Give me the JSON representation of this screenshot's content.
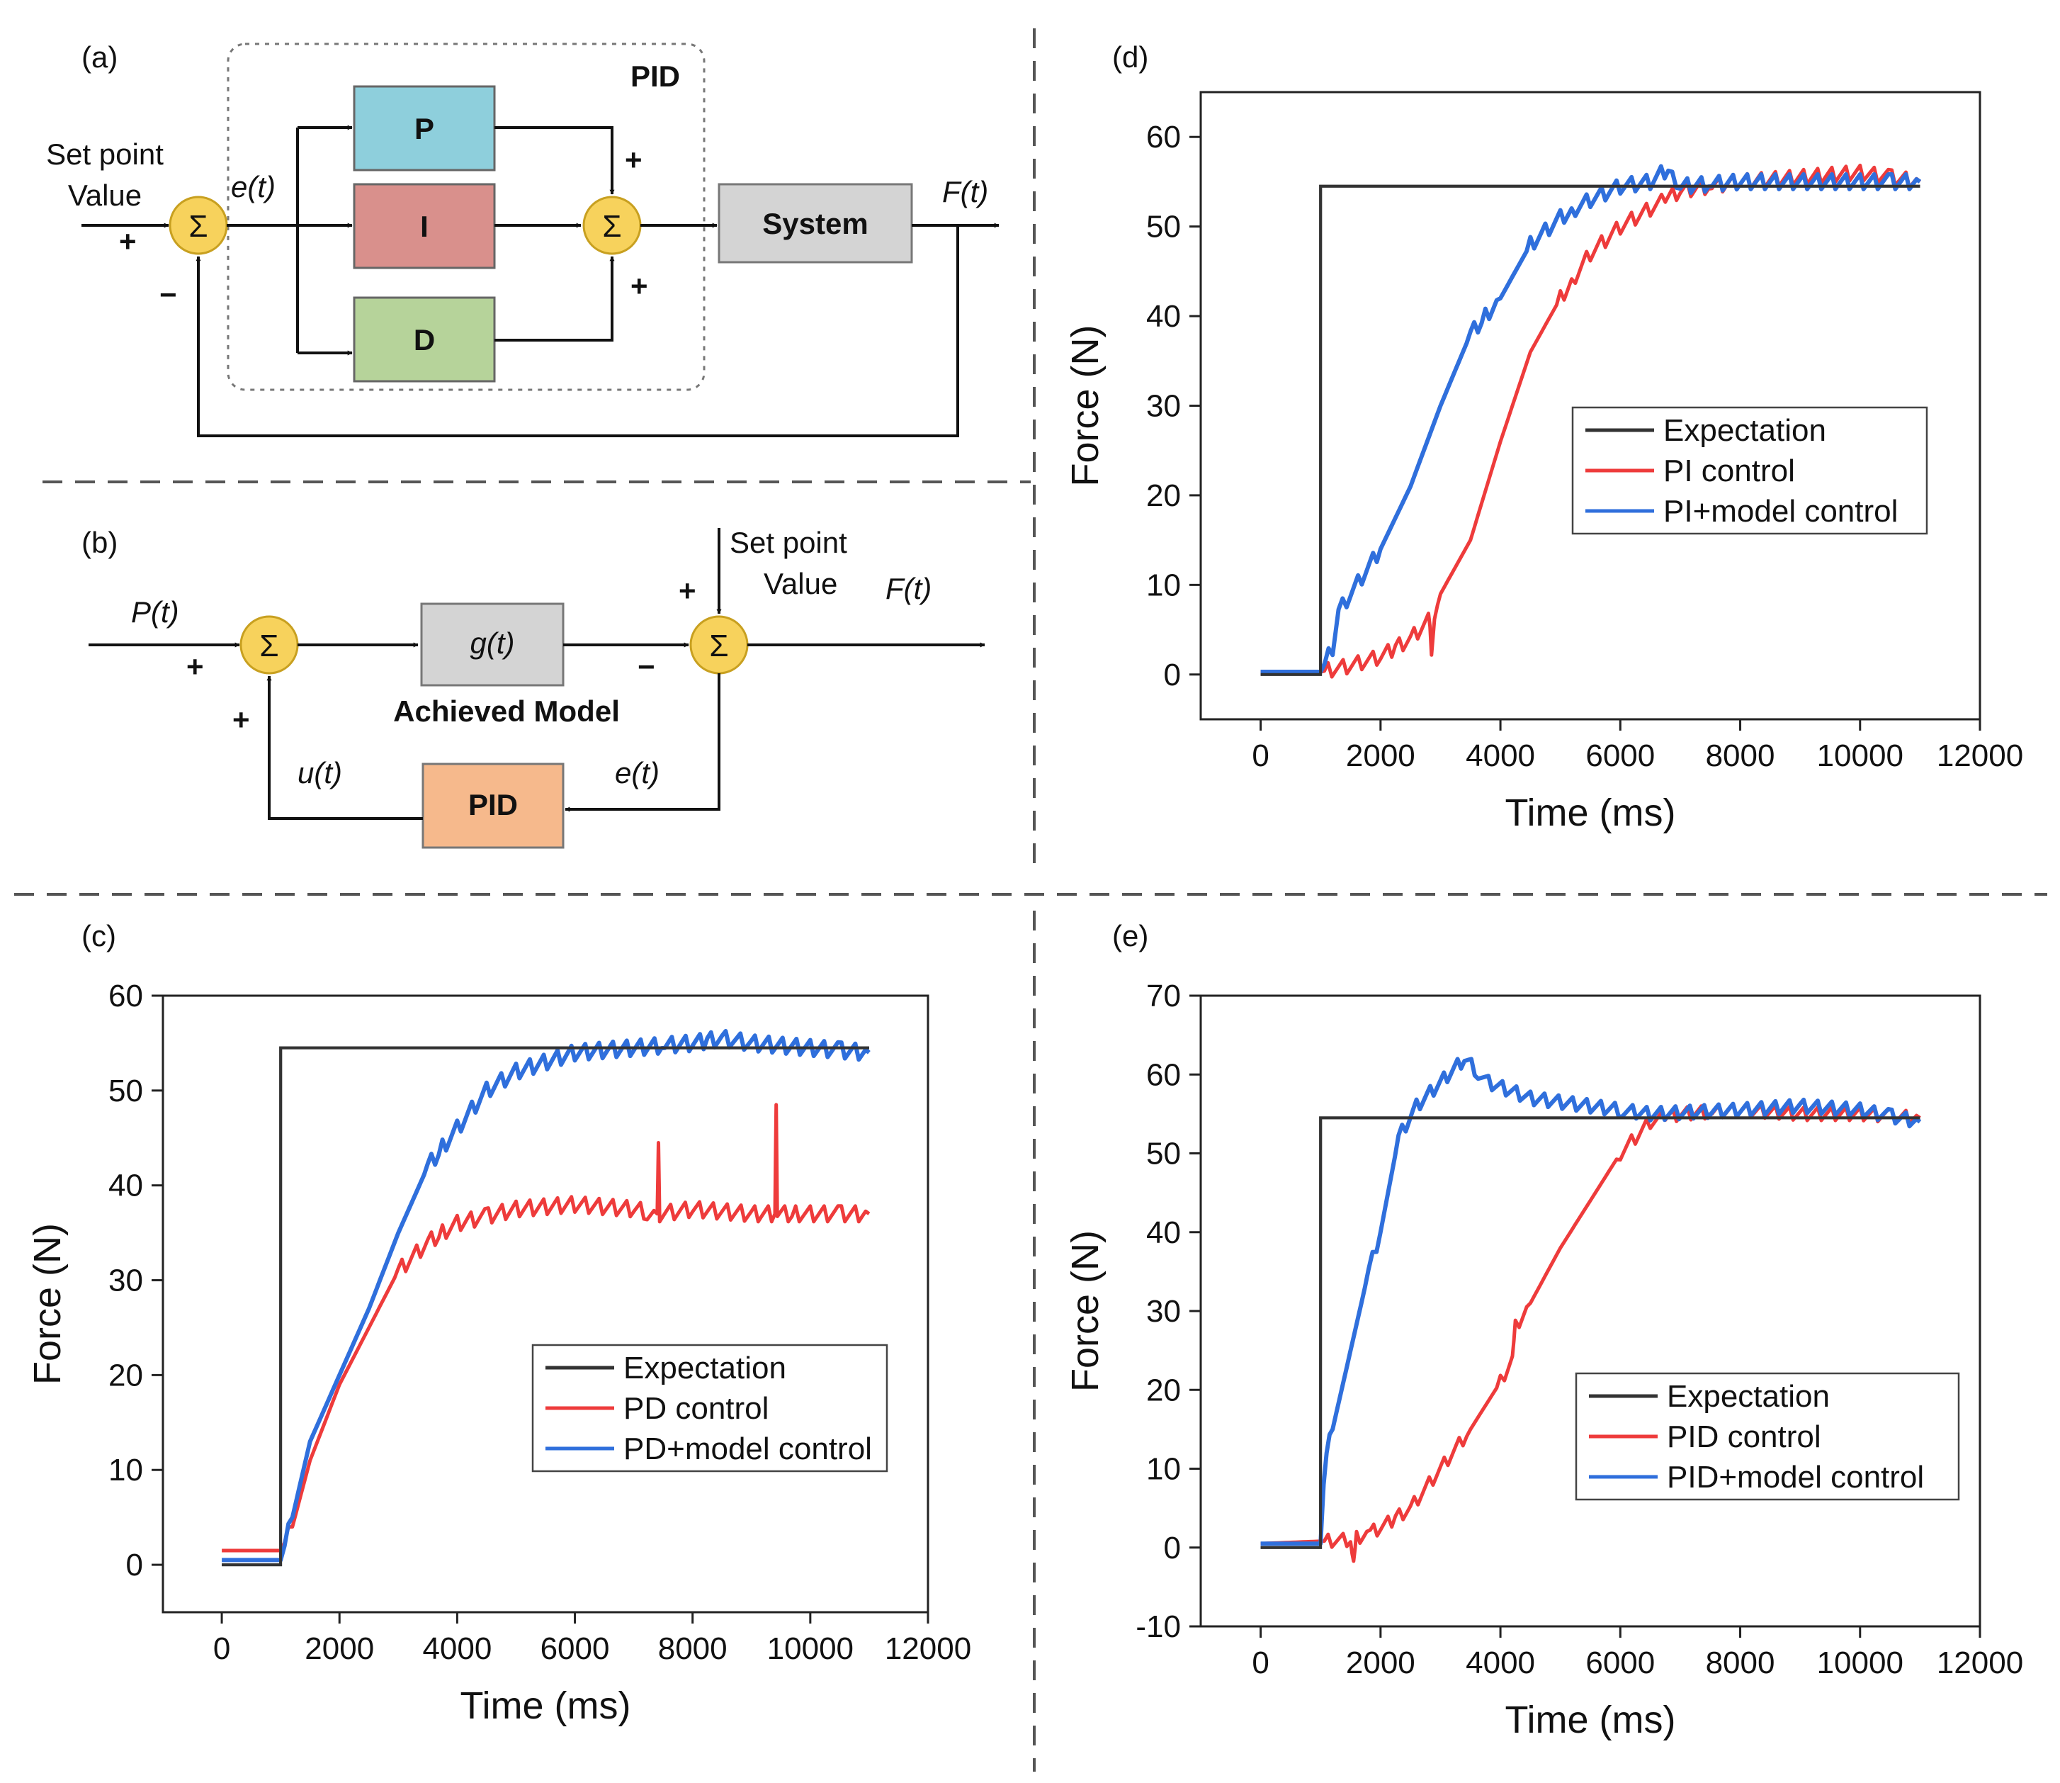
{
  "colors": {
    "expectation": "#333333",
    "red": "#ee3b3b",
    "blue": "#2f6fdc",
    "sum_fill": "#f7d25c",
    "P": "#8ecfdc",
    "I": "#d9908c",
    "D": "#b6d39a",
    "system": "#d4d4d4",
    "g": "#d4d4d4",
    "pid_box": "#f6b98c"
  },
  "diagram_a": {
    "panel": "(a)",
    "group_label": "PID",
    "input_label": "Set point\nValue",
    "error": "e(t)",
    "output": "F(t)",
    "sum": "Σ",
    "p": "P",
    "i": "I",
    "d": "D",
    "system": "System",
    "plus": "+",
    "minus": "−"
  },
  "diagram_b": {
    "panel": "(b)",
    "input": "P(t)",
    "sum": "Σ",
    "g": "g(t)",
    "model_label": "Achieved Model",
    "setpoint": "Set point\nValue",
    "output": "F(t)",
    "pid": "PID",
    "u": "u(t)",
    "e": "e(t)",
    "plus": "+",
    "minus": "−"
  },
  "chart_data": [
    {
      "panel": "(c)",
      "type": "line",
      "xlabel": "Time (ms)",
      "ylabel": "Force (N)",
      "xlim": [
        -1000,
        12000
      ],
      "ylim": [
        -5,
        60
      ],
      "xticks": [
        0,
        2000,
        4000,
        6000,
        8000,
        10000,
        12000
      ],
      "yticks": [
        0,
        10,
        20,
        30,
        40,
        50,
        60
      ],
      "legend_position": "bottom-right",
      "series": [
        {
          "name": "Expectation",
          "color": "#333333",
          "x": [
            0,
            999,
            1000,
            11000
          ],
          "y": [
            0,
            0,
            54.5,
            54.5
          ]
        },
        {
          "name": "PD control",
          "color": "#ee3b3b",
          "x": [
            0,
            500,
            1000,
            1200,
            1500,
            2000,
            2500,
            3000,
            3500,
            4000,
            5000,
            6000,
            7000,
            7400,
            7420,
            7440,
            8000,
            9000,
            9400,
            9420,
            9440,
            10000,
            11000
          ],
          "y": [
            1.5,
            1.5,
            1.5,
            4,
            11,
            19,
            25,
            31,
            34,
            36,
            37.5,
            38,
            37.5,
            37,
            44.5,
            37,
            37.5,
            37,
            37,
            48.5,
            37,
            37,
            37
          ]
        },
        {
          "name": "PD+model control",
          "color": "#2f6fdc",
          "x": [
            0,
            500,
            1000,
            1200,
            1500,
            2000,
            2500,
            3000,
            3500,
            4000,
            4500,
            5000,
            6000,
            7000,
            8000,
            8500,
            9000,
            10000,
            11000
          ],
          "y": [
            0.5,
            0.5,
            0.5,
            5,
            13,
            20,
            27,
            35,
            42,
            46,
            50,
            52,
            54,
            54.5,
            55,
            55.5,
            55,
            54.5,
            54
          ]
        }
      ]
    },
    {
      "panel": "(d)",
      "type": "line",
      "xlabel": "Time (ms)",
      "ylabel": "Force (N)",
      "xlim": [
        -1000,
        12000
      ],
      "ylim": [
        -5,
        65
      ],
      "xticks": [
        0,
        2000,
        4000,
        6000,
        8000,
        10000,
        12000
      ],
      "yticks": [
        0,
        10,
        20,
        30,
        40,
        50,
        60
      ],
      "legend_position": "center-right",
      "series": [
        {
          "name": "Expectation",
          "color": "#333333",
          "x": [
            0,
            999,
            1000,
            11000
          ],
          "y": [
            0,
            0,
            54.5,
            54.5
          ]
        },
        {
          "name": "PI control",
          "color": "#ee3b3b",
          "x": [
            0,
            1000,
            1500,
            2000,
            2500,
            2800,
            2850,
            2900,
            3000,
            3500,
            4000,
            4500,
            5000,
            5500,
            6000,
            6500,
            7000,
            8000,
            9000,
            10000,
            11000
          ],
          "y": [
            0.3,
            0.3,
            1,
            2,
            4,
            6,
            3,
            7,
            9,
            15,
            26,
            36,
            42,
            47,
            50,
            52,
            54,
            55,
            55.5,
            56,
            55
          ]
        },
        {
          "name": "PI+model control",
          "color": "#2f6fdc",
          "x": [
            0,
            1000,
            1200,
            1300,
            1500,
            2000,
            2500,
            3000,
            3500,
            4000,
            4500,
            5000,
            5500,
            6000,
            6500,
            6800,
            7000,
            8000,
            9000,
            10000,
            11000
          ],
          "y": [
            0.3,
            0.3,
            3,
            7,
            9,
            14,
            21,
            30,
            38,
            42,
            48,
            51,
            53,
            54.5,
            55,
            56.5,
            54.5,
            55,
            55,
            55,
            55
          ]
        }
      ]
    },
    {
      "panel": "(e)",
      "type": "line",
      "xlabel": "Time (ms)",
      "ylabel": "Force (N)",
      "xlim": [
        -1000,
        12000
      ],
      "ylim": [
        -10,
        70
      ],
      "xticks": [
        0,
        2000,
        4000,
        6000,
        8000,
        10000,
        12000
      ],
      "yticks": [
        -10,
        0,
        10,
        20,
        30,
        40,
        50,
        60,
        70
      ],
      "legend_position": "bottom-right",
      "series": [
        {
          "name": "Expectation",
          "color": "#333333",
          "x": [
            0,
            999,
            1000,
            11000
          ],
          "y": [
            0,
            0,
            54.5,
            54.5
          ]
        },
        {
          "name": "PID control",
          "color": "#ee3b3b",
          "x": [
            0,
            1000,
            1500,
            1550,
            1600,
            2000,
            2500,
            3000,
            3500,
            4000,
            4200,
            4250,
            4500,
            5000,
            5500,
            6000,
            6500,
            7000,
            8000,
            9000,
            10000,
            11000
          ],
          "y": [
            0.5,
            0.8,
            1,
            -2,
            1.2,
            2.5,
            5,
            10,
            15,
            21,
            24,
            28,
            31,
            38,
            44,
            50,
            54,
            55,
            55.5,
            55,
            55,
            54.5
          ]
        },
        {
          "name": "PID+model control",
          "color": "#2f6fdc",
          "x": [
            0,
            1000,
            1050,
            1100,
            1200,
            1500,
            1800,
            2000,
            2300,
            2600,
            3000,
            3400,
            3800,
            4500,
            5500,
            6500,
            8000,
            9000,
            10000,
            11000
          ],
          "y": [
            0.5,
            0.5,
            8,
            12,
            15,
            25,
            35,
            40,
            52,
            56,
            59,
            62,
            59,
            57,
            56,
            55,
            55.5,
            56,
            55.5,
            54
          ]
        }
      ]
    }
  ]
}
